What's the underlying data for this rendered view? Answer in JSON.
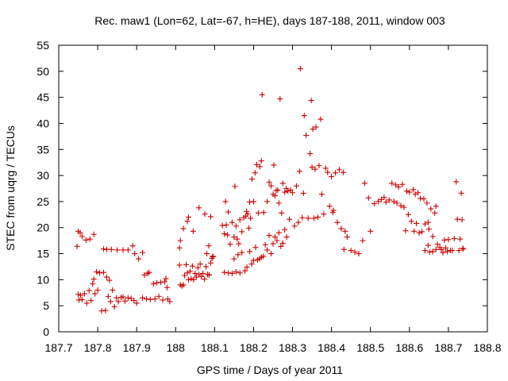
{
  "chart_data": {
    "type": "scatter",
    "title": "Rec. maw1 (Lon=62, Lat=-67, h=HE), days 187-188, 2011, window 003",
    "xlabel": "GPS time / Days of year 2011",
    "ylabel": "STEC from uqrg / TECUs",
    "xlim": [
      187.7,
      188.8
    ],
    "ylim": [
      0,
      55
    ],
    "x_ticks": [
      "187.7",
      "187.8",
      "187.9",
      "188",
      "188.1",
      "188.2",
      "188.3",
      "188.4",
      "188.5",
      "188.6",
      "188.7",
      "188.8"
    ],
    "y_ticks": [
      "0",
      "5",
      "10",
      "15",
      "20",
      "25",
      "30",
      "35",
      "40",
      "45",
      "50",
      "55"
    ],
    "x_tick_values": [
      187.7,
      187.8,
      187.9,
      188.0,
      188.1,
      188.2,
      188.3,
      188.4,
      188.5,
      188.6,
      188.7,
      188.8
    ],
    "y_tick_values": [
      0,
      5,
      10,
      15,
      20,
      25,
      30,
      35,
      40,
      45,
      50,
      55
    ],
    "marker": "+",
    "color": "#cc0000",
    "grid": false,
    "points": [
      [
        187.747,
        16.4
      ],
      [
        187.75,
        19.3
      ],
      [
        187.755,
        19.0
      ],
      [
        187.76,
        18.3
      ],
      [
        187.77,
        17.6
      ],
      [
        187.78,
        17.8
      ],
      [
        187.79,
        18.7
      ],
      [
        187.75,
        7.2
      ],
      [
        187.752,
        6.1
      ],
      [
        187.756,
        7.0
      ],
      [
        187.76,
        6.2
      ],
      [
        187.766,
        7.3
      ],
      [
        187.772,
        5.5
      ],
      [
        187.778,
        7.9
      ],
      [
        187.783,
        6.0
      ],
      [
        187.787,
        9.2
      ],
      [
        187.79,
        10.1
      ],
      [
        187.793,
        7.3
      ],
      [
        187.797,
        11.5
      ],
      [
        187.8,
        8.0
      ],
      [
        187.805,
        11.3
      ],
      [
        187.81,
        4.0
      ],
      [
        187.815,
        11.4
      ],
      [
        187.82,
        4.1
      ],
      [
        187.823,
        10.5
      ],
      [
        187.827,
        6.8
      ],
      [
        187.83,
        9.9
      ],
      [
        187.833,
        5.8
      ],
      [
        187.838,
        8.0
      ],
      [
        187.843,
        4.8
      ],
      [
        187.848,
        6.5
      ],
      [
        187.853,
        5.8
      ],
      [
        187.86,
        6.6
      ],
      [
        187.865,
        6.7
      ],
      [
        187.87,
        5.9
      ],
      [
        187.878,
        6.5
      ],
      [
        187.886,
        6.4
      ],
      [
        187.893,
        6.0
      ],
      [
        187.9,
        5.5
      ],
      [
        187.815,
        15.9
      ],
      [
        187.823,
        15.8
      ],
      [
        187.835,
        15.8
      ],
      [
        187.85,
        15.7
      ],
      [
        187.865,
        15.7
      ],
      [
        187.878,
        15.7
      ],
      [
        187.89,
        16.5
      ],
      [
        187.895,
        15.0
      ],
      [
        187.905,
        14.0
      ],
      [
        187.915,
        15.2
      ],
      [
        187.92,
        10.9
      ],
      [
        187.928,
        11.2
      ],
      [
        187.932,
        11.4
      ],
      [
        187.915,
        6.5
      ],
      [
        187.925,
        6.3
      ],
      [
        187.935,
        6.2
      ],
      [
        187.943,
        9.2
      ],
      [
        187.947,
        6.3
      ],
      [
        187.952,
        9.4
      ],
      [
        187.957,
        6.8
      ],
      [
        187.962,
        9.5
      ],
      [
        187.967,
        6.1
      ],
      [
        187.972,
        9.6
      ],
      [
        187.975,
        10.2
      ],
      [
        187.978,
        8.5
      ],
      [
        187.98,
        6.3
      ],
      [
        187.985,
        5.8
      ],
      [
        188.01,
        12.8
      ],
      [
        188.012,
        9.0
      ],
      [
        188.016,
        8.8
      ],
      [
        188.02,
        9.0
      ],
      [
        188.023,
        10.8
      ],
      [
        188.027,
        12.9
      ],
      [
        188.03,
        11.3
      ],
      [
        188.033,
        10.0
      ],
      [
        188.037,
        11.6
      ],
      [
        188.04,
        10.2
      ],
      [
        188.043,
        12.6
      ],
      [
        188.046,
        10.0
      ],
      [
        188.05,
        11.2
      ],
      [
        188.053,
        10.5
      ],
      [
        188.057,
        12.3
      ],
      [
        188.06,
        11.0
      ],
      [
        188.063,
        13.0
      ],
      [
        188.066,
        10.6
      ],
      [
        188.07,
        11.2
      ],
      [
        188.074,
        10.1
      ],
      [
        188.078,
        12.5
      ],
      [
        188.082,
        11.0
      ],
      [
        188.086,
        10.9
      ],
      [
        188.09,
        13.2
      ],
      [
        188.093,
        14.1
      ],
      [
        188.096,
        14.4
      ],
      [
        188.01,
        16.1
      ],
      [
        188.012,
        17.5
      ],
      [
        188.02,
        19.8
      ],
      [
        188.03,
        21.2
      ],
      [
        188.033,
        22.0
      ],
      [
        188.045,
        19.3
      ],
      [
        188.06,
        23.8
      ],
      [
        188.075,
        22.6
      ],
      [
        188.08,
        15.0
      ],
      [
        188.085,
        16.5
      ],
      [
        188.09,
        22.1
      ],
      [
        188.095,
        14.5
      ],
      [
        188.12,
        20.4
      ],
      [
        188.125,
        18.8
      ],
      [
        188.128,
        25.0
      ],
      [
        188.13,
        20.5
      ],
      [
        188.133,
        18.6
      ],
      [
        188.135,
        23.0
      ],
      [
        188.14,
        16.8
      ],
      [
        188.145,
        21.0
      ],
      [
        188.15,
        18.2
      ],
      [
        188.152,
        27.9
      ],
      [
        188.155,
        20.3
      ],
      [
        188.158,
        17.8
      ],
      [
        188.162,
        16.9
      ],
      [
        188.165,
        21.5
      ],
      [
        188.17,
        19.2
      ],
      [
        188.175,
        21.9
      ],
      [
        188.18,
        22.2
      ],
      [
        188.182,
        23.1
      ],
      [
        188.185,
        22.6
      ],
      [
        188.188,
        19.9
      ],
      [
        188.19,
        24.9
      ],
      [
        188.192,
        21.8
      ],
      [
        188.196,
        29.3
      ],
      [
        188.2,
        25.0
      ],
      [
        188.204,
        30.5
      ],
      [
        188.208,
        32.1
      ],
      [
        188.212,
        22.8
      ],
      [
        188.216,
        31.7
      ],
      [
        188.22,
        32.8
      ],
      [
        188.222,
        45.5
      ],
      [
        188.226,
        22.9
      ],
      [
        188.125,
        11.4
      ],
      [
        188.135,
        11.3
      ],
      [
        188.145,
        11.2
      ],
      [
        188.15,
        14.0
      ],
      [
        188.155,
        11.5
      ],
      [
        188.16,
        14.8
      ],
      [
        188.165,
        11.3
      ],
      [
        188.17,
        15.2
      ],
      [
        188.178,
        11.7
      ],
      [
        188.183,
        12.4
      ],
      [
        188.19,
        15.4
      ],
      [
        188.195,
        13.0
      ],
      [
        188.2,
        13.7
      ],
      [
        188.205,
        16.2
      ],
      [
        188.21,
        13.8
      ],
      [
        188.215,
        14.0
      ],
      [
        188.22,
        14.3
      ],
      [
        188.225,
        14.5
      ],
      [
        188.23,
        16.7
      ],
      [
        188.235,
        15.7
      ],
      [
        188.24,
        18.5
      ],
      [
        188.245,
        15.0
      ],
      [
        188.25,
        16.9
      ],
      [
        188.255,
        18.2
      ],
      [
        188.26,
        17.5
      ],
      [
        188.265,
        19.0
      ],
      [
        188.27,
        16.4
      ],
      [
        188.275,
        17.0
      ],
      [
        188.28,
        19.6
      ],
      [
        188.285,
        18.2
      ],
      [
        188.235,
        25.0
      ],
      [
        188.24,
        28.7
      ],
      [
        188.245,
        28.0
      ],
      [
        188.25,
        26.4
      ],
      [
        188.252,
        32.0
      ],
      [
        188.255,
        26.1
      ],
      [
        188.258,
        27.1
      ],
      [
        188.262,
        27.2
      ],
      [
        188.265,
        24.7
      ],
      [
        188.268,
        44.7
      ],
      [
        188.272,
        22.8
      ],
      [
        188.275,
        28.5
      ],
      [
        188.28,
        26.8
      ],
      [
        188.284,
        27.5
      ],
      [
        188.288,
        27.0
      ],
      [
        188.292,
        21.6
      ],
      [
        188.295,
        27.2
      ],
      [
        188.3,
        26.7
      ],
      [
        188.305,
        20.3
      ],
      [
        188.31,
        28.0
      ],
      [
        188.315,
        21.0
      ],
      [
        188.318,
        30.8
      ],
      [
        188.32,
        50.5
      ],
      [
        188.325,
        21.9
      ],
      [
        188.328,
        26.6
      ],
      [
        188.33,
        41.5
      ],
      [
        188.335,
        37.7
      ],
      [
        188.34,
        21.8
      ],
      [
        188.345,
        34.2
      ],
      [
        188.348,
        44.4
      ],
      [
        188.35,
        31.6
      ],
      [
        188.352,
        38.9
      ],
      [
        188.355,
        21.8
      ],
      [
        188.358,
        31.2
      ],
      [
        188.36,
        39.3
      ],
      [
        188.365,
        22.0
      ],
      [
        188.368,
        31.9
      ],
      [
        188.372,
        40.8
      ],
      [
        188.375,
        26.4
      ],
      [
        188.38,
        22.6
      ],
      [
        188.385,
        31.4
      ],
      [
        188.39,
        30.6
      ],
      [
        188.395,
        24.1
      ],
      [
        188.4,
        29.8
      ],
      [
        188.403,
        22.9
      ],
      [
        188.405,
        23.3
      ],
      [
        188.41,
        30.5
      ],
      [
        188.415,
        21.0
      ],
      [
        188.42,
        31.1
      ],
      [
        188.425,
        19.8
      ],
      [
        188.43,
        30.6
      ],
      [
        188.432,
        15.8
      ],
      [
        188.435,
        19.3
      ],
      [
        188.44,
        18.2
      ],
      [
        188.45,
        15.6
      ],
      [
        188.46,
        15.3
      ],
      [
        188.47,
        15.0
      ],
      [
        188.48,
        17.5
      ],
      [
        188.485,
        28.5
      ],
      [
        188.495,
        25.7
      ],
      [
        188.5,
        19.3
      ],
      [
        188.51,
        24.6
      ],
      [
        188.52,
        25.0
      ],
      [
        188.528,
        25.4
      ],
      [
        188.535,
        25.8
      ],
      [
        188.54,
        24.9
      ],
      [
        188.548,
        25.3
      ],
      [
        188.555,
        28.5
      ],
      [
        188.56,
        25.0
      ],
      [
        188.565,
        28.2
      ],
      [
        188.568,
        24.7
      ],
      [
        188.572,
        27.8
      ],
      [
        188.578,
        24.2
      ],
      [
        188.582,
        28.3
      ],
      [
        188.586,
        23.9
      ],
      [
        188.59,
        19.4
      ],
      [
        188.593,
        27.0
      ],
      [
        188.597,
        22.5
      ],
      [
        188.6,
        26.8
      ],
      [
        188.605,
        21.2
      ],
      [
        188.61,
        27.3
      ],
      [
        188.612,
        19.3
      ],
      [
        188.615,
        26.4
      ],
      [
        188.618,
        20.8
      ],
      [
        188.622,
        26.7
      ],
      [
        188.625,
        19.0
      ],
      [
        188.628,
        25.6
      ],
      [
        188.632,
        19.2
      ],
      [
        188.637,
        25.5
      ],
      [
        188.64,
        20.7
      ],
      [
        188.645,
        24.7
      ],
      [
        188.648,
        21.0
      ],
      [
        188.65,
        19.7
      ],
      [
        188.655,
        23.6
      ],
      [
        188.66,
        18.3
      ],
      [
        188.665,
        22.8
      ],
      [
        188.668,
        24.1
      ],
      [
        188.672,
        16.8
      ],
      [
        188.678,
        16.2
      ],
      [
        188.682,
        15.8
      ],
      [
        188.686,
        15.2
      ],
      [
        188.69,
        17.6
      ],
      [
        188.693,
        16.1
      ],
      [
        188.697,
        15.4
      ],
      [
        188.7,
        17.7
      ],
      [
        188.705,
        15.6
      ],
      [
        188.71,
        15.6
      ],
      [
        188.715,
        17.9
      ],
      [
        188.72,
        28.8
      ],
      [
        188.723,
        21.6
      ],
      [
        188.727,
        15.6
      ],
      [
        188.73,
        17.8
      ],
      [
        188.733,
        26.6
      ],
      [
        188.735,
        21.5
      ],
      [
        188.737,
        16.0
      ],
      [
        188.738,
        15.9
      ],
      [
        188.64,
        15.6
      ],
      [
        188.648,
        16.6
      ],
      [
        188.652,
        15.3
      ],
      [
        188.66,
        15.4
      ],
      [
        188.668,
        15.8
      ]
    ]
  }
}
